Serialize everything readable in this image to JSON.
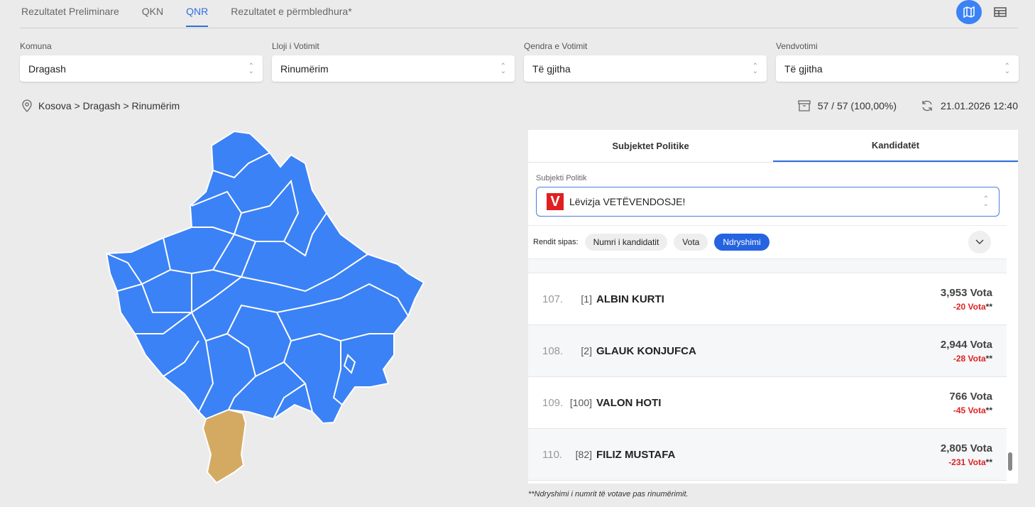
{
  "tabs": [
    {
      "label": "Rezultatet Preliminare"
    },
    {
      "label": "QKN"
    },
    {
      "label": "QNR",
      "active": true
    },
    {
      "label": "Rezultatet e përmbledhura*"
    }
  ],
  "view_buttons": {
    "map": "map-icon",
    "table": "table-icon",
    "accent": "#3b82f6"
  },
  "filters": [
    {
      "label": "Komuna",
      "value": "Dragash"
    },
    {
      "label": "Lloji i Votimit",
      "value": "Rinumërim"
    },
    {
      "label": "Qendra e Votimit",
      "value": "Të gjitha"
    },
    {
      "label": "Vendvotimi",
      "value": "Të gjitha"
    }
  ],
  "breadcrumb": "Kosova > Dragash > Rinumërim",
  "status": {
    "counted": "57 / 57 (100,00%)",
    "updated": "21.01.2026 12:40"
  },
  "map": {
    "fill": "#3b82f6",
    "selected_fill": "#d4aa62",
    "selected": "Dragash"
  },
  "panel": {
    "tabs": [
      {
        "label": "Subjektet Politike"
      },
      {
        "label": "Kandidatët",
        "active": true
      }
    ],
    "party_label": "Subjekti Politik",
    "party": "Lëvizja VETËVENDOSJE!",
    "party_logo": "V",
    "sort_label": "Rendit sipas:",
    "sort_options": [
      {
        "label": "Numri i kandidatit"
      },
      {
        "label": "Vota"
      },
      {
        "label": "Ndryshimi",
        "active": true
      }
    ],
    "candidates": [
      {
        "rank": "107.",
        "number": "[1]",
        "name": "ALBIN KURTI",
        "votes": "3,953 Vota",
        "change": "-20 Vota",
        "mark": "**"
      },
      {
        "rank": "108.",
        "number": "[2]",
        "name": "GLAUK KONJUFCA",
        "votes": "2,944 Vota",
        "change": "-28 Vota",
        "mark": "**"
      },
      {
        "rank": "109.",
        "number": "[100]",
        "name": "VALON HOTI",
        "votes": "766 Vota",
        "change": "-45 Vota",
        "mark": "**"
      },
      {
        "rank": "110.",
        "number": "[82]",
        "name": "FILIZ MUSTAFA",
        "votes": "2,805 Vota",
        "change": "-231 Vota",
        "mark": "**"
      }
    ]
  },
  "footnote": "**Ndryshimi i numrit të votave pas rinumërimit."
}
